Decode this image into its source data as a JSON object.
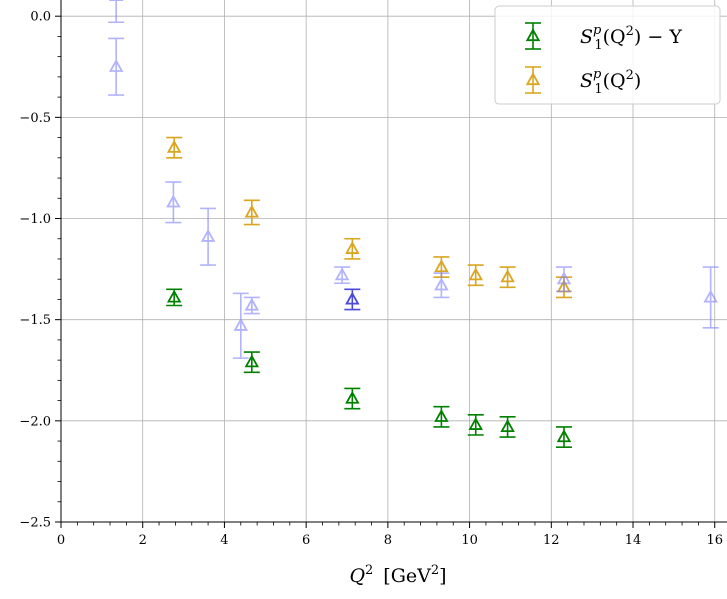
{
  "chart_data": {
    "type": "scatter",
    "title": "",
    "xlabel": "Q² [GeV²]",
    "xlabel_parts": {
      "var": "Q",
      "sup": "2",
      "unit_open": "[GeV",
      "unit_sup": "2",
      "unit_close": "]"
    },
    "ylabel": "",
    "xlim": [
      0,
      16.3
    ],
    "ylim": [
      -2.5,
      0.08
    ],
    "x_ticks": [
      0,
      2,
      4,
      6,
      8,
      10,
      12,
      14,
      16
    ],
    "x_tick_labels": [
      "0",
      "2",
      "4",
      "6",
      "8",
      "10",
      "12",
      "14",
      "16"
    ],
    "y_ticks": [
      -2.5,
      -2.0,
      -1.5,
      -1.0,
      -0.5,
      0.0
    ],
    "y_tick_labels": [
      "−2.5",
      "−2.0",
      "−1.5",
      "−1.0",
      "−0.5",
      "0.0"
    ],
    "grid": true,
    "legend_position": "top-right",
    "series": [
      {
        "name": "S₁ᵖ(Q²) − Υ",
        "legend": {
          "main": "S",
          "sub": "1",
          "sup": "p",
          "args": "(Q",
          "args_sup": "2",
          "rest": ") − Υ"
        },
        "color": "#008000",
        "points": [
          {
            "x": 2.77,
            "y": -1.39,
            "err": 0.04
          },
          {
            "x": 4.67,
            "y": -1.71,
            "err": 0.05
          },
          {
            "x": 7.13,
            "y": -1.89,
            "err": 0.05
          },
          {
            "x": 9.31,
            "y": -1.98,
            "err": 0.05
          },
          {
            "x": 10.15,
            "y": -2.02,
            "err": 0.05
          },
          {
            "x": 10.93,
            "y": -2.03,
            "err": 0.05
          },
          {
            "x": 12.31,
            "y": -2.08,
            "err": 0.05
          }
        ]
      },
      {
        "name": "S₁ᵖ(Q²)",
        "legend": {
          "main": "S",
          "sub": "1",
          "sup": "p",
          "args": "(Q",
          "args_sup": "2",
          "rest": ")"
        },
        "color": "#DAA520",
        "points": [
          {
            "x": 2.77,
            "y": -0.65,
            "err": 0.05
          },
          {
            "x": 4.67,
            "y": -0.97,
            "err": 0.06
          },
          {
            "x": 7.13,
            "y": -1.15,
            "err": 0.05
          },
          {
            "x": 9.31,
            "y": -1.24,
            "err": 0.05
          },
          {
            "x": 10.15,
            "y": -1.28,
            "err": 0.05
          },
          {
            "x": 10.93,
            "y": -1.29,
            "err": 0.05
          },
          {
            "x": 12.31,
            "y": -1.34,
            "err": 0.05
          }
        ]
      },
      {
        "name": "",
        "color": "#8080ff",
        "opacity": 0.6,
        "points": [
          {
            "x": 1.35,
            "y": -0.25,
            "err": 0.14
          },
          {
            "x": 1.35,
            "y": 0.1,
            "err": 0.13
          },
          {
            "x": 2.75,
            "y": -0.92,
            "err": 0.1
          },
          {
            "x": 3.6,
            "y": -1.09,
            "err": 0.14
          },
          {
            "x": 4.4,
            "y": -1.53,
            "err": 0.16
          },
          {
            "x": 4.67,
            "y": -1.43,
            "err": 0.04
          },
          {
            "x": 6.88,
            "y": -1.28,
            "err": 0.04
          },
          {
            "x": 9.31,
            "y": -1.33,
            "err": 0.06
          },
          {
            "x": 12.31,
            "y": -1.3,
            "err": 0.06
          },
          {
            "x": 15.9,
            "y": -1.39,
            "err": 0.15
          }
        ]
      },
      {
        "name": "",
        "color": "#2a2ad8",
        "opacity": 0.85,
        "points": [
          {
            "x": 7.13,
            "y": -1.4,
            "err": 0.05
          }
        ]
      }
    ]
  }
}
